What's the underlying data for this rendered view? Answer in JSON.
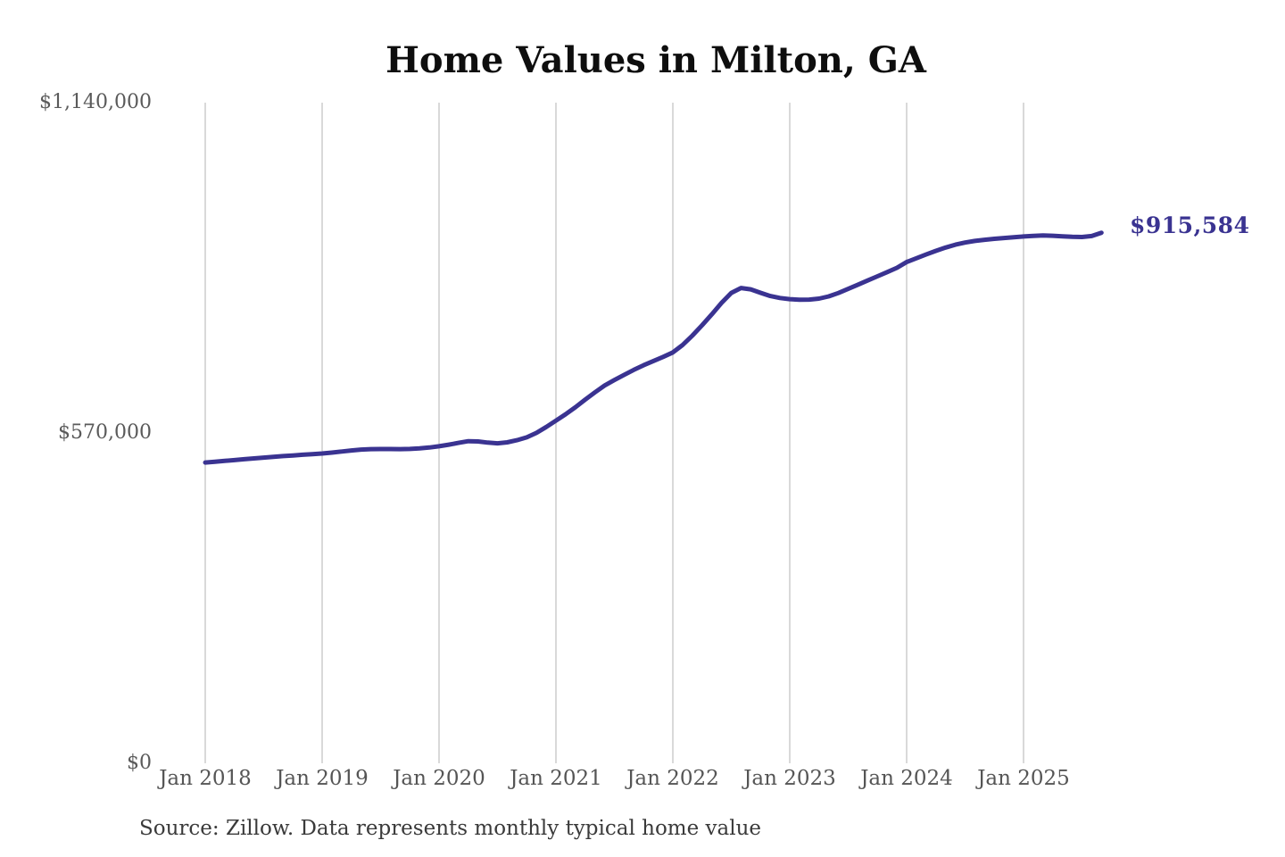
{
  "source_note": "Source: Zillow. Data represents monthly typical home value",
  "colors": {
    "line": "#3a3391",
    "grid": "#c9c9c9",
    "axis_text": "#5a5a5a",
    "title_text": "#0e0e0e",
    "end_label_text": "#3a3391"
  },
  "chart_data": {
    "type": "line",
    "title": "Home Values in Milton, GA",
    "xlabel": "",
    "ylabel": "",
    "ylim": [
      0,
      1140000
    ],
    "grid": "vertical-only",
    "legend": "none",
    "end_label": "$915,584",
    "final_value": 915584,
    "y_ticks": [
      {
        "label": "$0",
        "value": 0
      },
      {
        "label": "$570,000",
        "value": 570000
      },
      {
        "label": "$1,140,000",
        "value": 1140000
      }
    ],
    "x_tick_labels": [
      "Jan 2018",
      "Jan 2019",
      "Jan 2020",
      "Jan 2021",
      "Jan 2022",
      "Jan 2023",
      "Jan 2024",
      "Jan 2025"
    ],
    "x_tick_month_indices": [
      0,
      12,
      24,
      36,
      48,
      60,
      72,
      84
    ],
    "x": [
      "2018-01",
      "2018-02",
      "2018-03",
      "2018-04",
      "2018-05",
      "2018-06",
      "2018-07",
      "2018-08",
      "2018-09",
      "2018-10",
      "2018-11",
      "2018-12",
      "2019-01",
      "2019-02",
      "2019-03",
      "2019-04",
      "2019-05",
      "2019-06",
      "2019-07",
      "2019-08",
      "2019-09",
      "2019-10",
      "2019-11",
      "2019-12",
      "2020-01",
      "2020-02",
      "2020-03",
      "2020-04",
      "2020-05",
      "2020-06",
      "2020-07",
      "2020-08",
      "2020-09",
      "2020-10",
      "2020-11",
      "2020-12",
      "2021-01",
      "2021-02",
      "2021-03",
      "2021-04",
      "2021-05",
      "2021-06",
      "2021-07",
      "2021-08",
      "2021-09",
      "2021-10",
      "2021-11",
      "2021-12",
      "2022-01",
      "2022-02",
      "2022-03",
      "2022-04",
      "2022-05",
      "2022-06",
      "2022-07",
      "2022-08",
      "2022-09",
      "2022-10",
      "2022-11",
      "2022-12",
      "2023-01",
      "2023-02",
      "2023-03",
      "2023-04",
      "2023-05",
      "2023-06",
      "2023-07",
      "2023-08",
      "2023-09",
      "2023-10",
      "2023-11",
      "2023-12",
      "2024-01",
      "2024-02",
      "2024-03",
      "2024-04",
      "2024-05",
      "2024-06",
      "2024-07",
      "2024-08",
      "2024-09",
      "2024-10",
      "2024-11",
      "2024-12",
      "2025-01",
      "2025-02",
      "2025-03",
      "2025-04",
      "2025-05",
      "2025-06",
      "2025-07",
      "2025-08",
      "2025-09"
    ],
    "values": [
      519000,
      520400,
      521800,
      523200,
      524700,
      526100,
      527500,
      528900,
      530100,
      531200,
      532400,
      533500,
      534600,
      536100,
      537900,
      539800,
      541300,
      542100,
      542300,
      542200,
      542100,
      542400,
      543300,
      544900,
      547000,
      549800,
      552900,
      555800,
      555300,
      553400,
      552200,
      553800,
      557500,
      562500,
      570200,
      580300,
      591200,
      602400,
      614300,
      627600,
      640100,
      652000,
      661400,
      670300,
      678900,
      687000,
      694200,
      701300,
      709000,
      721800,
      737900,
      755900,
      774800,
      794500,
      811700,
      820200,
      817900,
      811900,
      806300,
      802900,
      800900,
      800000,
      800200,
      801900,
      805700,
      811500,
      818600,
      825900,
      833100,
      840300,
      847600,
      855000,
      865000,
      871500,
      878000,
      884300,
      890000,
      894900,
      898600,
      901400,
      903400,
      905000,
      906400,
      907700,
      909000,
      910200,
      910700,
      910300,
      909400,
      908500,
      908200,
      909900,
      915584
    ]
  }
}
